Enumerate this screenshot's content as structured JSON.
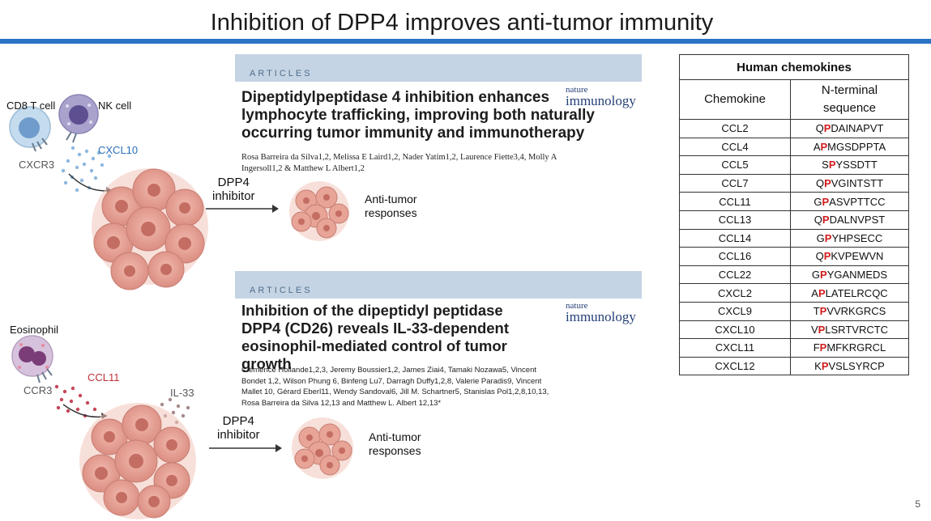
{
  "slide": {
    "title": "Inhibition of DPP4 improves anti-tumor immunity",
    "page_number": "5"
  },
  "diagram_top": {
    "cd8_label": "CD8 T cell",
    "nk_label": "NK cell",
    "receptor_label": "CXCR3",
    "chemokine_label": "CXCL10",
    "arrow_label": "DPP4\ninhibitor",
    "result_label": "Anti-tumor\nresponses"
  },
  "diagram_bottom": {
    "cell_label": "Eosinophil",
    "receptor_label": "CCR3",
    "chemokine_label": "CCL11",
    "cytokine_label": "IL-33",
    "arrow_label": "DPP4\ninhibitor",
    "result_label": "Anti-tumor\nresponses"
  },
  "article1": {
    "band_label": "ARTICLES",
    "journal_line1": "nature",
    "journal_line2": "immunology",
    "title": "Dipeptidylpeptidase 4 inhibition enhances lymphocyte trafficking, improving both naturally occurring tumor immunity and immunotherapy",
    "authors": "Rosa Barreira da Silva1,2, Melissa E Laird1,2, Nader Yatim1,2, Laurence Fiette3,4, Molly A Ingersoll1,2 & Matthew L Albert1,2"
  },
  "article2": {
    "band_label": "ARTICLES",
    "journal_line1": "nature",
    "journal_line2": "immunology",
    "title": "Inhibition of the dipeptidyl peptidase DPP4 (CD26) reveals IL-33-dependent eosinophil-mediated control of tumor growth",
    "authors": "Clémence Hollande1,2,3, Jeremy Boussier1,2, James Ziai4, Tamaki Nozawa5, Vincent Bondet 1,2, Wilson Phung 6, Binfeng Lu7, Darragh Duffy1,2,8, Valerie Paradis9, Vincent Mallet 10, Gérard Eberl11, Wendy Sandoval6, Jill M. Schartner5, Stanislas Pol1,2,8,10,13, Rosa Barreira da Silva 12,13 and Matthew L. Albert 12,13*"
  },
  "table": {
    "title": "Human chemokines",
    "col1": "Chemokine",
    "col2": "N-terminal\nsequence",
    "rows": [
      {
        "name": "CCL2",
        "first": "Q",
        "p": "P",
        "rest": "DAINAPVT"
      },
      {
        "name": "CCL4",
        "first": "A",
        "p": "P",
        "rest": "MGSDPPTA"
      },
      {
        "name": "CCL5",
        "first": "S",
        "p": "P",
        "rest": "YSSDTT"
      },
      {
        "name": "CCL7",
        "first": "Q",
        "p": "P",
        "rest": "VGINTSTT"
      },
      {
        "name": "CCL11",
        "first": "G",
        "p": "P",
        "rest": "ASVPTTCC"
      },
      {
        "name": "CCL13",
        "first": "Q",
        "p": "P",
        "rest": "DALNVPST"
      },
      {
        "name": "CCL14",
        "first": "G",
        "p": "P",
        "rest": "YHPSECC"
      },
      {
        "name": "CCL16",
        "first": "Q",
        "p": "P",
        "rest": "KVPEWVN"
      },
      {
        "name": "CCL22",
        "first": "G",
        "p": "P",
        "rest": "YGANMEDS"
      },
      {
        "name": "CXCL2",
        "first": "A",
        "p": "P",
        "rest": "LATELRCQC"
      },
      {
        "name": "CXCL9",
        "first": "T",
        "p": "P",
        "rest": "VVRKGRCS"
      },
      {
        "name": "CXCL10",
        "first": "V",
        "p": "P",
        "rest": "LSRTVRCTC"
      },
      {
        "name": "CXCL11",
        "first": "F",
        "p": "P",
        "rest": "MFKRGRCL"
      },
      {
        "name": "CXCL12",
        "first": "K",
        "p": "P",
        "rest": "VSLSYRCP"
      }
    ]
  },
  "colors": {
    "accent_blue": "#2a73c5",
    "highlight_red": "#d11b1b",
    "tumor_fill": "#e8a79c",
    "ccl11_red": "#c0303a",
    "cxcl10_blue": "#2a6fb8"
  }
}
